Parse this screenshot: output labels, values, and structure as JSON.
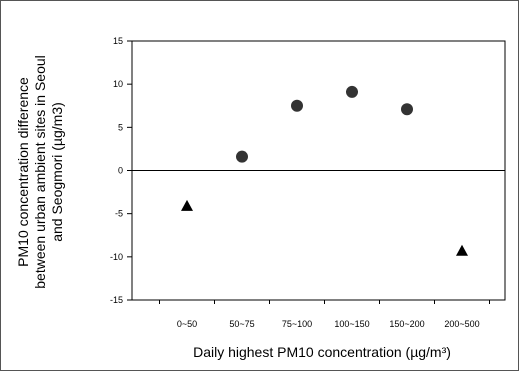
{
  "chart_data": {
    "type": "scatter",
    "categories": [
      "0~50",
      "50~75",
      "75~100",
      "100~150",
      "150~200",
      "200~500"
    ],
    "ylim": [
      -15,
      15
    ],
    "yticks": [
      15,
      10,
      5,
      0,
      -5,
      -10,
      -15
    ],
    "xlabel": "Daily highest PM10 concentration (µg/m³)",
    "ylabel_lines": [
      "PM10 concentration difference",
      "between urban ambient sites in Seoul",
      "and Seogmori (µg/m3)"
    ],
    "zero_line": true,
    "grid": false,
    "points": [
      {
        "category": "0~50",
        "value": -4.1,
        "marker": "triangle"
      },
      {
        "category": "50~75",
        "value": 1.6,
        "marker": "circle"
      },
      {
        "category": "75~100",
        "value": 7.5,
        "marker": "circle"
      },
      {
        "category": "100~150",
        "value": 9.1,
        "marker": "circle"
      },
      {
        "category": "150~200",
        "value": 7.1,
        "marker": "circle"
      },
      {
        "category": "200~500",
        "value": -9.3,
        "marker": "triangle"
      }
    ],
    "marker_color": "#333333"
  }
}
